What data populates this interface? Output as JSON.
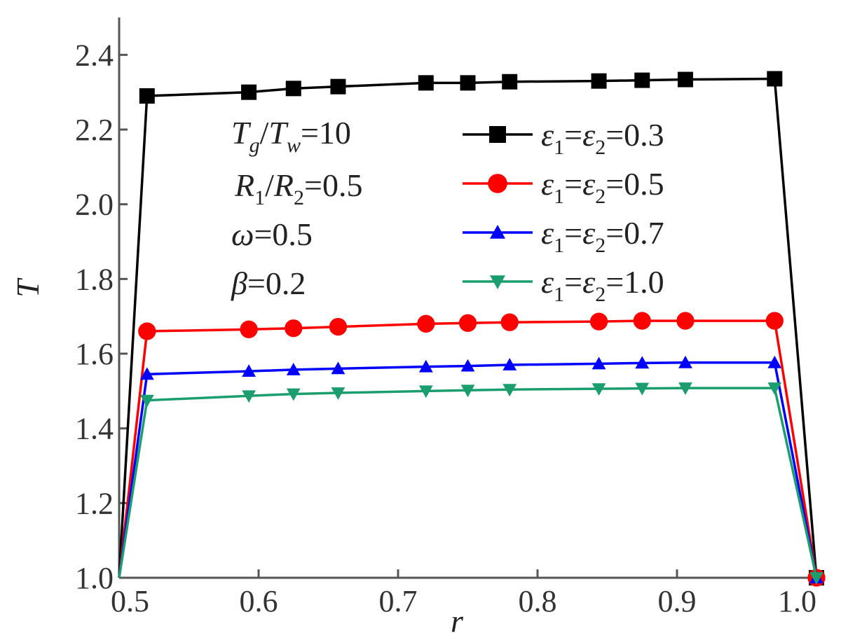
{
  "chart_data": {
    "type": "line",
    "title": "",
    "xlabel": "r",
    "ylabel": "T",
    "xlim": [
      0.5,
      1.0
    ],
    "ylim": [
      1.0,
      2.5
    ],
    "xticks": [
      "0.5",
      "0.6",
      "0.7",
      "0.8",
      "0.9",
      "1.0"
    ],
    "yticks": [
      "1.0",
      "1.2",
      "1.4",
      "1.6",
      "1.8",
      "2.0",
      "2.2",
      "2.4"
    ],
    "grid": false,
    "legend_position": "right",
    "x": [
      0.5,
      0.52,
      0.593,
      0.625,
      0.657,
      0.72,
      0.75,
      0.78,
      0.844,
      0.875,
      0.906,
      0.97,
      1.0
    ],
    "series": [
      {
        "name": "ε1=ε2=0.3",
        "marker": "square",
        "color": "#000000",
        "values": [
          1.0,
          2.29,
          2.3,
          2.31,
          2.315,
          2.325,
          2.325,
          2.328,
          2.33,
          2.332,
          2.334,
          2.336,
          1.0
        ]
      },
      {
        "name": "ε1=ε2=0.5",
        "marker": "circle",
        "color": "#ff0000",
        "values": [
          1.0,
          1.66,
          1.665,
          1.668,
          1.672,
          1.68,
          1.682,
          1.684,
          1.686,
          1.688,
          1.688,
          1.688,
          1.0
        ]
      },
      {
        "name": "ε1=ε2=0.7",
        "marker": "triangle-up",
        "color": "#0000ff",
        "values": [
          1.0,
          1.545,
          1.553,
          1.557,
          1.56,
          1.565,
          1.567,
          1.57,
          1.573,
          1.575,
          1.576,
          1.576,
          1.0
        ]
      },
      {
        "name": "ε1=ε2=1.0",
        "marker": "triangle-down",
        "color": "#1a9e6e",
        "values": [
          1.0,
          1.475,
          1.487,
          1.492,
          1.495,
          1.5,
          1.502,
          1.504,
          1.506,
          1.507,
          1.508,
          1.508,
          1.0
        ]
      }
    ],
    "annotations": {
      "line1": "Tg/Tw=10",
      "line2": "R1/R2=0.5",
      "line3": "ω=0.5",
      "line4": "β=0.2"
    }
  }
}
